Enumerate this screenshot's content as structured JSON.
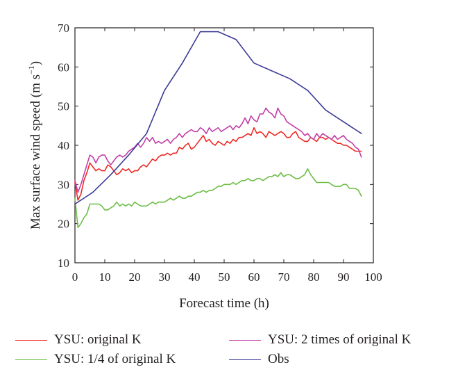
{
  "chart_data": {
    "type": "line",
    "xlabel": "Forecast time (h)",
    "ylabel": {
      "main": "Max surface wind speed (m s",
      "sup": "−1",
      "close": ")"
    },
    "xlim": [
      0,
      100
    ],
    "ylim": [
      10,
      70
    ],
    "xticks": [
      0,
      10,
      20,
      30,
      40,
      50,
      60,
      70,
      80,
      90,
      100
    ],
    "yticks": [
      10,
      20,
      30,
      40,
      50,
      60,
      70
    ],
    "grid": false,
    "legend_position": "bottom",
    "series": [
      {
        "name": "YSU: original K",
        "color": "#ee2a24",
        "x": [
          0,
          1,
          2,
          3,
          4,
          5,
          6,
          7,
          8,
          9,
          10,
          11,
          12,
          13,
          14,
          15,
          16,
          17,
          18,
          19,
          20,
          21,
          22,
          23,
          24,
          25,
          26,
          27,
          28,
          29,
          30,
          31,
          32,
          33,
          34,
          35,
          36,
          37,
          38,
          39,
          40,
          41,
          42,
          43,
          44,
          45,
          46,
          47,
          48,
          49,
          50,
          51,
          52,
          53,
          54,
          55,
          56,
          57,
          58,
          59,
          60,
          61,
          62,
          63,
          64,
          65,
          66,
          67,
          68,
          69,
          70,
          71,
          72,
          73,
          74,
          75,
          76,
          77,
          78,
          79,
          80,
          81,
          82,
          83,
          84,
          85,
          86,
          87,
          88,
          89,
          90,
          91,
          92,
          93,
          94,
          95,
          96
        ],
        "y": [
          30.5,
          26,
          27.5,
          31,
          33,
          35.5,
          34.5,
          33.5,
          34,
          33.5,
          33.5,
          35,
          34.5,
          33.5,
          32.5,
          33,
          34,
          33.5,
          34,
          33,
          33.5,
          33.5,
          34.5,
          35,
          34.5,
          35.5,
          36.5,
          36,
          37,
          37.5,
          37.5,
          38,
          37.5,
          38,
          38,
          39.5,
          39,
          40,
          40.5,
          39,
          39.5,
          40.5,
          41.5,
          42.5,
          41,
          41.5,
          40.5,
          40,
          41,
          40.5,
          40,
          41,
          40.5,
          41.5,
          41,
          42,
          42,
          42.5,
          43,
          42.5,
          44.5,
          43,
          43.5,
          43,
          42,
          43.5,
          43,
          42.5,
          43,
          43.5,
          43,
          42,
          42,
          43,
          43.5,
          42,
          41.5,
          41,
          41,
          42,
          41.5,
          41,
          42,
          42,
          41.5,
          42,
          41.5,
          41,
          40.5,
          40.5,
          40,
          40,
          39.5,
          39,
          38.5,
          38.5,
          38.5
        ]
      },
      {
        "name": "YSU: 2 times of original K",
        "color": "#c13ea6",
        "x": [
          0,
          1,
          2,
          3,
          4,
          5,
          6,
          7,
          8,
          9,
          10,
          11,
          12,
          13,
          14,
          15,
          16,
          17,
          18,
          19,
          20,
          21,
          22,
          23,
          24,
          25,
          26,
          27,
          28,
          29,
          30,
          31,
          32,
          33,
          34,
          35,
          36,
          37,
          38,
          39,
          40,
          41,
          42,
          43,
          44,
          45,
          46,
          47,
          48,
          49,
          50,
          51,
          52,
          53,
          54,
          55,
          56,
          57,
          58,
          59,
          60,
          61,
          62,
          63,
          64,
          65,
          66,
          67,
          68,
          69,
          70,
          71,
          72,
          73,
          74,
          75,
          76,
          77,
          78,
          79,
          80,
          81,
          82,
          83,
          84,
          85,
          86,
          87,
          88,
          89,
          90,
          91,
          92,
          93,
          94,
          95,
          96
        ],
        "y": [
          31,
          28,
          30,
          32.5,
          35,
          37.5,
          37,
          35.5,
          37,
          37.5,
          37.5,
          36,
          35,
          36,
          37,
          37.5,
          37,
          37.5,
          38.5,
          39,
          39.5,
          40.5,
          39.5,
          40.5,
          42,
          41,
          42,
          40.5,
          41,
          40.5,
          41,
          41.5,
          40.5,
          41.5,
          42,
          43,
          42,
          43,
          43.5,
          44,
          43.5,
          43.5,
          44.5,
          44,
          43,
          44.5,
          43.5,
          44,
          44.5,
          43.5,
          44,
          44.5,
          45,
          44,
          45,
          44.5,
          45.5,
          47,
          45.5,
          47.5,
          46.5,
          46,
          48,
          48,
          49.5,
          48.5,
          48,
          47,
          49.5,
          48,
          47.5,
          46,
          45.5,
          45,
          44.5,
          44,
          43.5,
          42.5,
          43,
          42,
          41.5,
          43,
          42,
          43,
          42.5,
          42,
          41.5,
          42.5,
          41.5,
          42,
          42.5,
          41.5,
          41,
          40.5,
          39.5,
          39,
          37
        ]
      },
      {
        "name": "YSU: 1/4 of original K",
        "color": "#6cbd45",
        "x": [
          0,
          1,
          2,
          3,
          4,
          5,
          6,
          7,
          8,
          9,
          10,
          11,
          12,
          13,
          14,
          15,
          16,
          17,
          18,
          19,
          20,
          21,
          22,
          23,
          24,
          25,
          26,
          27,
          28,
          29,
          30,
          31,
          32,
          33,
          34,
          35,
          36,
          37,
          38,
          39,
          40,
          41,
          42,
          43,
          44,
          45,
          46,
          47,
          48,
          49,
          50,
          51,
          52,
          53,
          54,
          55,
          56,
          57,
          58,
          59,
          60,
          61,
          62,
          63,
          64,
          65,
          66,
          67,
          68,
          69,
          70,
          71,
          72,
          73,
          74,
          75,
          76,
          77,
          78,
          79,
          80,
          81,
          82,
          83,
          84,
          85,
          86,
          87,
          88,
          89,
          90,
          91,
          92,
          93,
          94,
          95,
          96
        ],
        "y": [
          26.5,
          19,
          20,
          21.5,
          22.5,
          25,
          25,
          25,
          25,
          24.5,
          23.5,
          23.5,
          24,
          24.5,
          25.5,
          24.5,
          25,
          24.5,
          25,
          24.5,
          25.5,
          25,
          24.5,
          24.5,
          24.5,
          25,
          25.5,
          25,
          25.5,
          25.5,
          25.5,
          26,
          26.5,
          26,
          26.5,
          27,
          26.5,
          26.5,
          27,
          27,
          27.5,
          28,
          28,
          28.5,
          28,
          28.5,
          28.5,
          29,
          29.5,
          29.5,
          30,
          30,
          30,
          30.5,
          30,
          30.5,
          31,
          31,
          31.5,
          31,
          31,
          31.5,
          31.5,
          31,
          31.5,
          32,
          32,
          32.5,
          32,
          33,
          32,
          32.5,
          32.5,
          32,
          31.5,
          31.5,
          32,
          32.5,
          34,
          32.5,
          31.5,
          30.5,
          30.5,
          30.5,
          30.5,
          30.5,
          30,
          29.5,
          29.5,
          29.5,
          30,
          30,
          29,
          29,
          29,
          28.5,
          27
        ]
      },
      {
        "name": "Obs",
        "color": "#3b3b96",
        "x": [
          0,
          6,
          12,
          18,
          24,
          30,
          36,
          42,
          48,
          54,
          60,
          66,
          72,
          78,
          84,
          90,
          96
        ],
        "y": [
          25,
          28,
          32.5,
          37.5,
          43,
          54,
          61,
          69,
          69,
          67,
          61,
          59,
          57,
          54,
          49,
          46,
          43
        ]
      }
    ]
  }
}
